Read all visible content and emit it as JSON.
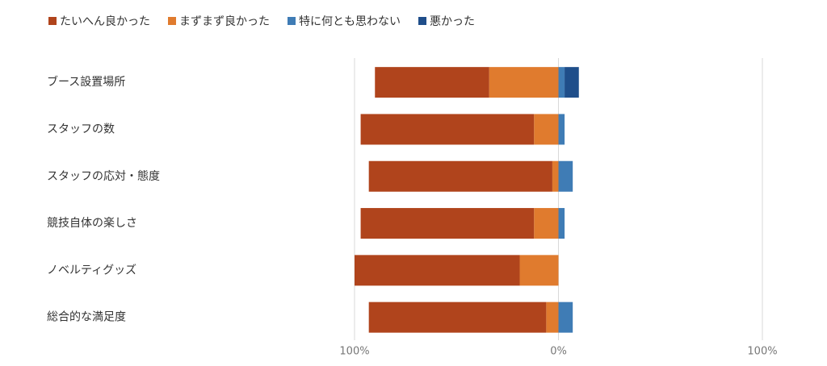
{
  "chart_data": {
    "type": "diverging-bar",
    "categories": [
      "ブース設置場所",
      "スタッフの数",
      "スタッフの応対・態度",
      "競技自体の楽しさ",
      "ノベルティグッズ",
      "総合的な満足度"
    ],
    "series": [
      {
        "name": "たいへん良かった",
        "color": "#b0441c",
        "values": [
          -56,
          -85,
          -90,
          -85,
          -81,
          -87
        ]
      },
      {
        "name": "まずまず良かった",
        "color": "#e07b2e",
        "values": [
          -34,
          -12,
          -3,
          -12,
          -19,
          -6
        ]
      },
      {
        "name": "特に何とも思わない",
        "color": "#3f7cb5",
        "values": [
          3,
          3,
          7,
          3,
          0,
          7
        ]
      },
      {
        "name": "悪かった",
        "color": "#1f4e8a",
        "values": [
          7,
          0,
          0,
          0,
          0,
          0
        ]
      }
    ],
    "xlim": [
      -100,
      100
    ],
    "xticks": [
      {
        "value": -100,
        "label": "100%"
      },
      {
        "value": 0,
        "label": "0%"
      },
      {
        "value": 100,
        "label": "100%"
      }
    ],
    "grid": true
  }
}
